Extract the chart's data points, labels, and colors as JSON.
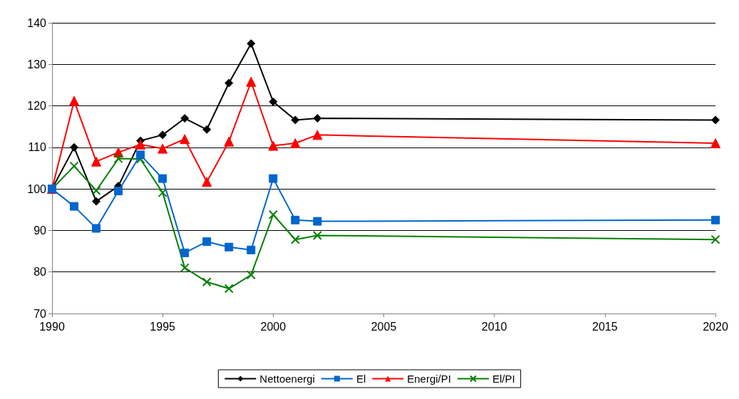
{
  "chart_data": {
    "type": "line",
    "x": [
      1990,
      1991,
      1992,
      1993,
      1994,
      1995,
      1996,
      1997,
      1998,
      1999,
      2000,
      2001,
      2002,
      2020
    ],
    "xlim": [
      1990,
      2020
    ],
    "xticks": [
      1990,
      1995,
      2000,
      2005,
      2010,
      2015,
      2020
    ],
    "ylim": [
      70,
      140
    ],
    "yticks": [
      70,
      80,
      90,
      100,
      110,
      120,
      130,
      140
    ],
    "grid": "y",
    "legend": "bottom",
    "line_style": "solid",
    "series": [
      {
        "name": "Nettoenergi",
        "color": "#000000",
        "marker": "diamond",
        "values": [
          100,
          110,
          97,
          100.7,
          111.6,
          113,
          117,
          114.3,
          125.5,
          135,
          121,
          116.6,
          117,
          116.6
        ]
      },
      {
        "name": "El",
        "color": "#0066cc",
        "marker": "square",
        "values": [
          100,
          95.8,
          90.5,
          99.5,
          108.2,
          102.5,
          84.6,
          87.3,
          86,
          85.3,
          102.5,
          92.5,
          92.2,
          92.5
        ]
      },
      {
        "name": "Energi/PI",
        "color": "#ff0000",
        "marker": "triangle",
        "values": [
          100,
          121.2,
          106.6,
          108.8,
          110.7,
          109.7,
          112,
          101.7,
          111.4,
          125.8,
          110.4,
          111,
          113,
          111
        ]
      },
      {
        "name": "El/PI",
        "color": "#008000",
        "marker": "cross",
        "values": [
          100,
          105.5,
          99.6,
          107.3,
          107.2,
          99.1,
          81,
          77.6,
          76,
          79.3,
          93.8,
          87.8,
          88.8,
          87.8
        ]
      }
    ]
  }
}
